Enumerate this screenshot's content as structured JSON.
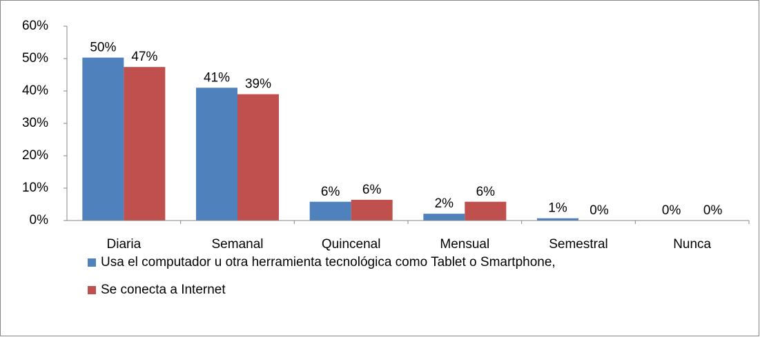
{
  "chart_data": {
    "type": "bar",
    "categories": [
      "Diaria",
      "Semanal",
      "Quincenal",
      "Mensual",
      "Semestral",
      "Nunca"
    ],
    "series": [
      {
        "name": "Usa el computador u otra herramienta tecnológica como Tablet o Smartphone,",
        "color": "#4f81bd",
        "values": [
          50.3,
          41,
          5.8,
          2.1,
          0.7,
          0
        ],
        "value_labels": [
          "50%",
          "41%",
          "6%",
          "2%",
          "1%",
          "0%"
        ]
      },
      {
        "name": "Se conecta a  Internet",
        "color": "#c0504d",
        "values": [
          47.4,
          39,
          6.4,
          5.8,
          0,
          0
        ],
        "value_labels": [
          "47%",
          "39%",
          "6%",
          "6%",
          "0%",
          "0%"
        ]
      }
    ],
    "ylim": [
      0,
      60
    ],
    "yticks": [
      {
        "value": 0,
        "label": "0%"
      },
      {
        "value": 10,
        "label": "10%"
      },
      {
        "value": 20,
        "label": "20%"
      },
      {
        "value": 30,
        "label": "30%"
      },
      {
        "value": 40,
        "label": "40%"
      },
      {
        "value": 50,
        "label": "50%"
      },
      {
        "value": 60,
        "label": "60%"
      }
    ],
    "legend": "bottom"
  }
}
